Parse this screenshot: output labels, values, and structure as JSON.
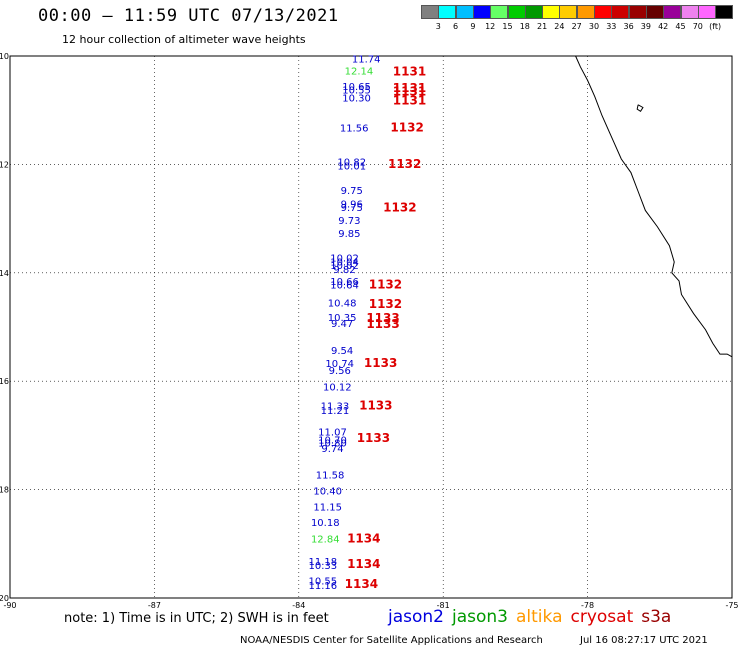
{
  "header": {
    "title": "00:00 – 11:59 UTC 07/13/2021",
    "subtitle": "12 hour collection of altimeter wave heights"
  },
  "colorbar": {
    "colors": [
      "#808080",
      "#00ffff",
      "#00bfff",
      "#0000ff",
      "#66ff66",
      "#00cc00",
      "#009900",
      "#ffff00",
      "#ffcc00",
      "#ff9900",
      "#ff0000",
      "#cc0000",
      "#990000",
      "#660000",
      "#990099",
      "#ee82ee",
      "#ff66ff",
      "#000000"
    ],
    "labels": [
      "3",
      "6",
      "9",
      "12",
      "15",
      "18",
      "21",
      "24",
      "27",
      "30",
      "33",
      "36",
      "39",
      "42",
      "45",
      "70",
      "(ft)"
    ]
  },
  "map": {
    "lon_range": [
      -90,
      -75
    ],
    "lat_range": [
      -20,
      -10
    ],
    "lon_ticks": [
      "-90",
      "-87",
      "-84",
      "-81",
      "-78",
      "-75"
    ],
    "lon_tick_values": [
      -90,
      -87,
      -84,
      -81,
      -78,
      -75
    ],
    "lat_ticks": [
      "-10",
      "-12",
      "-14",
      "-16",
      "-18",
      "-20"
    ],
    "lat_tick_values": [
      -10,
      -12,
      -14,
      -16,
      -18,
      -20
    ],
    "swh_points": [
      {
        "lat": -10.05,
        "lon": -82.6,
        "v": "11.74",
        "c": "#0000cc"
      },
      {
        "lat": -10.27,
        "lon": -82.75,
        "v": "12.14",
        "c": "#33dd33"
      },
      {
        "lat": -10.55,
        "lon": -82.8,
        "v": "10.65",
        "c": "#0000cc"
      },
      {
        "lat": -10.62,
        "lon": -82.8,
        "v": "10.55",
        "c": "#0000cc"
      },
      {
        "lat": -10.77,
        "lon": -82.8,
        "v": "10.30",
        "c": "#0000cc"
      },
      {
        "lat": -11.32,
        "lon": -82.85,
        "v": "11.56",
        "c": "#0000cc"
      },
      {
        "lat": -11.95,
        "lon": -82.9,
        "v": "10.82",
        "c": "#0000cc"
      },
      {
        "lat": -12.02,
        "lon": -82.9,
        "v": "10.01",
        "c": "#0000cc"
      },
      {
        "lat": -12.47,
        "lon": -82.9,
        "v": "9.75",
        "c": "#0000cc"
      },
      {
        "lat": -12.72,
        "lon": -82.9,
        "v": "9.96",
        "c": "#0000cc"
      },
      {
        "lat": -12.79,
        "lon": -82.9,
        "v": "9.75",
        "c": "#0000cc"
      },
      {
        "lat": -13.03,
        "lon": -82.95,
        "v": "9.73",
        "c": "#0000cc"
      },
      {
        "lat": -13.27,
        "lon": -82.95,
        "v": "9.85",
        "c": "#0000cc"
      },
      {
        "lat": -13.72,
        "lon": -83.05,
        "v": "10.02",
        "c": "#0000cc"
      },
      {
        "lat": -13.79,
        "lon": -83.05,
        "v": "10.04",
        "c": "#0000cc"
      },
      {
        "lat": -13.86,
        "lon": -83.05,
        "v": "10.02",
        "c": "#0000cc"
      },
      {
        "lat": -13.93,
        "lon": -83.05,
        "v": "9.82",
        "c": "#0000cc"
      },
      {
        "lat": -14.15,
        "lon": -83.05,
        "v": "10.66",
        "c": "#0000cc"
      },
      {
        "lat": -14.22,
        "lon": -83.05,
        "v": "10.64",
        "c": "#0000cc"
      },
      {
        "lat": -14.55,
        "lon": -83.1,
        "v": "10.48",
        "c": "#0000cc"
      },
      {
        "lat": -14.82,
        "lon": -83.1,
        "v": "10.35",
        "c": "#0000cc"
      },
      {
        "lat": -14.93,
        "lon": -83.1,
        "v": "9.47",
        "c": "#0000cc"
      },
      {
        "lat": -15.42,
        "lon": -83.1,
        "v": "9.54",
        "c": "#0000cc"
      },
      {
        "lat": -15.66,
        "lon": -83.15,
        "v": "10.74",
        "c": "#0000cc"
      },
      {
        "lat": -15.79,
        "lon": -83.15,
        "v": "9.56",
        "c": "#0000cc"
      },
      {
        "lat": -16.1,
        "lon": -83.2,
        "v": "10.12",
        "c": "#0000cc"
      },
      {
        "lat": -16.45,
        "lon": -83.25,
        "v": "11.33",
        "c": "#0000cc"
      },
      {
        "lat": -16.53,
        "lon": -83.25,
        "v": "11.21",
        "c": "#0000cc"
      },
      {
        "lat": -16.93,
        "lon": -83.3,
        "v": "11.07",
        "c": "#0000cc"
      },
      {
        "lat": -17.08,
        "lon": -83.3,
        "v": "10.70",
        "c": "#0000cc"
      },
      {
        "lat": -17.13,
        "lon": -83.3,
        "v": "10.80",
        "c": "#0000cc"
      },
      {
        "lat": -17.23,
        "lon": -83.3,
        "v": "9.74",
        "c": "#0000cc"
      },
      {
        "lat": -17.72,
        "lon": -83.35,
        "v": "11.58",
        "c": "#0000cc"
      },
      {
        "lat": -18.02,
        "lon": -83.4,
        "v": "10.40",
        "c": "#0000cc"
      },
      {
        "lat": -18.31,
        "lon": -83.4,
        "v": "11.15",
        "c": "#0000cc"
      },
      {
        "lat": -18.6,
        "lon": -83.45,
        "v": "10.18",
        "c": "#0000cc"
      },
      {
        "lat": -18.9,
        "lon": -83.45,
        "v": "12.84",
        "c": "#33dd33"
      },
      {
        "lat": -19.32,
        "lon": -83.5,
        "v": "11.18",
        "c": "#0000cc"
      },
      {
        "lat": -19.39,
        "lon": -83.5,
        "v": "10.33",
        "c": "#0000cc"
      },
      {
        "lat": -19.68,
        "lon": -83.5,
        "v": "10.55",
        "c": "#0000cc"
      },
      {
        "lat": -19.76,
        "lon": -83.5,
        "v": "11.16",
        "c": "#0000cc"
      }
    ],
    "cycle_labels": [
      {
        "lat": -10.27,
        "lon": -81.7,
        "v": "1131"
      },
      {
        "lat": -10.57,
        "lon": -81.7,
        "v": "1131"
      },
      {
        "lat": -10.64,
        "lon": -81.7,
        "v": "1131"
      },
      {
        "lat": -10.8,
        "lon": -81.7,
        "v": "1131"
      },
      {
        "lat": -11.3,
        "lon": -81.75,
        "v": "1132"
      },
      {
        "lat": -11.97,
        "lon": -81.8,
        "v": "1132"
      },
      {
        "lat": -12.78,
        "lon": -81.9,
        "v": "1132"
      },
      {
        "lat": -14.2,
        "lon": -82.2,
        "v": "1132"
      },
      {
        "lat": -14.56,
        "lon": -82.2,
        "v": "1132"
      },
      {
        "lat": -14.82,
        "lon": -82.25,
        "v": "1133"
      },
      {
        "lat": -14.93,
        "lon": -82.25,
        "v": "1133"
      },
      {
        "lat": -15.65,
        "lon": -82.3,
        "v": "1133"
      },
      {
        "lat": -16.43,
        "lon": -82.4,
        "v": "1133"
      },
      {
        "lat": -17.03,
        "lon": -82.45,
        "v": "1133"
      },
      {
        "lat": -18.88,
        "lon": -82.65,
        "v": "1134"
      },
      {
        "lat": -19.35,
        "lon": -82.65,
        "v": "1134"
      },
      {
        "lat": -19.72,
        "lon": -82.7,
        "v": "1134"
      }
    ],
    "cycle_color": "#dd0000",
    "coastline": [
      [
        -78.25,
        -10.0
      ],
      [
        -78.15,
        -10.2
      ],
      [
        -78.0,
        -10.45
      ],
      [
        -77.85,
        -10.75
      ],
      [
        -77.7,
        -11.1
      ],
      [
        -77.6,
        -11.3
      ],
      [
        -77.45,
        -11.6
      ],
      [
        -77.3,
        -11.9
      ],
      [
        -77.1,
        -12.15
      ],
      [
        -76.95,
        -12.5
      ],
      [
        -76.8,
        -12.85
      ],
      [
        -76.55,
        -13.15
      ],
      [
        -76.3,
        -13.5
      ],
      [
        -76.2,
        -13.8
      ],
      [
        -76.25,
        -14.0
      ],
      [
        -76.1,
        -14.15
      ],
      [
        -76.05,
        -14.4
      ],
      [
        -75.8,
        -14.75
      ],
      [
        -75.55,
        -15.05
      ],
      [
        -75.4,
        -15.3
      ],
      [
        -75.25,
        -15.5
      ],
      [
        -75.1,
        -15.5
      ],
      [
        -75.0,
        -15.55
      ]
    ],
    "island": [
      [
        -76.95,
        -10.9
      ],
      [
        -76.85,
        -10.95
      ],
      [
        -76.9,
        -11.02
      ],
      [
        -76.97,
        -10.98
      ],
      [
        -76.95,
        -10.9
      ]
    ]
  },
  "note": "note: 1) Time is in UTC; 2) SWH is in feet",
  "legend": [
    {
      "label": "jason2",
      "color": "#0000dd"
    },
    {
      "label": "jason3",
      "color": "#009900"
    },
    {
      "label": "altika",
      "color": "#ff9900"
    },
    {
      "label": "cryosat",
      "color": "#dd0000"
    },
    {
      "label": "s3a",
      "color": "#990000"
    }
  ],
  "footer": {
    "credit": "NOAA/NESDIS Center for Satellite Applications and Research",
    "timestamp": "Jul 16 08:27:17 UTC 2021"
  }
}
